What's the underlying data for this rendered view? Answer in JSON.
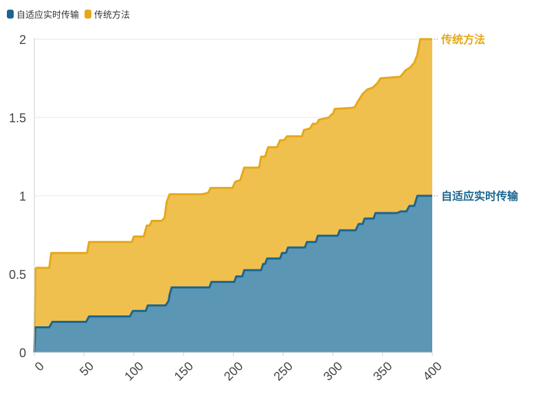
{
  "chart_data": {
    "type": "area",
    "stacked": true,
    "xlim": [
      0,
      400
    ],
    "ylim": [
      0,
      2
    ],
    "x_ticks": [
      0,
      50,
      100,
      150,
      200,
      250,
      300,
      350,
      400
    ],
    "y_ticks": [
      0,
      0.5,
      1,
      1.5,
      2
    ],
    "x_tick_labels": [
      "0",
      "50",
      "100",
      "150",
      "200",
      "250",
      "300",
      "350",
      "400"
    ],
    "y_tick_labels": [
      "0",
      "0.5",
      "1",
      "1.5",
      "2"
    ],
    "grid": "horizontal",
    "legend_position": "top-left",
    "series": [
      {
        "name": "自适应实时传输",
        "color": "#1b6690",
        "fill": "#5c96b5",
        "points": [
          [
            0,
            0
          ],
          [
            1,
            0.16
          ],
          [
            15,
            0.16
          ],
          [
            18,
            0.195
          ],
          [
            52,
            0.195
          ],
          [
            55,
            0.23
          ],
          [
            96,
            0.23
          ],
          [
            99,
            0.265
          ],
          [
            112,
            0.265
          ],
          [
            114,
            0.3
          ],
          [
            132,
            0.3
          ],
          [
            135,
            0.33
          ],
          [
            136,
            0.37
          ],
          [
            138,
            0.415
          ],
          [
            176,
            0.415
          ],
          [
            178,
            0.45
          ],
          [
            201,
            0.45
          ],
          [
            203,
            0.485
          ],
          [
            209,
            0.485
          ],
          [
            211,
            0.525
          ],
          [
            228,
            0.525
          ],
          [
            230,
            0.565
          ],
          [
            232,
            0.565
          ],
          [
            234,
            0.6
          ],
          [
            247,
            0.6
          ],
          [
            249,
            0.635
          ],
          [
            253,
            0.635
          ],
          [
            255,
            0.67
          ],
          [
            272,
            0.67
          ],
          [
            274,
            0.705
          ],
          [
            283,
            0.705
          ],
          [
            285,
            0.745
          ],
          [
            305,
            0.745
          ],
          [
            307,
            0.78
          ],
          [
            323,
            0.78
          ],
          [
            326,
            0.82
          ],
          [
            330,
            0.82
          ],
          [
            332,
            0.855
          ],
          [
            341,
            0.855
          ],
          [
            343,
            0.89
          ],
          [
            365,
            0.89
          ],
          [
            368,
            0.9
          ],
          [
            374,
            0.9
          ],
          [
            377,
            0.935
          ],
          [
            382,
            0.935
          ],
          [
            385,
            1.0
          ],
          [
            400,
            1.0
          ]
        ]
      },
      {
        "name": "传统方法",
        "color": "#e5a819",
        "fill": "#f0c04f",
        "points": [
          [
            0,
            0
          ],
          [
            1,
            0.53
          ],
          [
            2,
            0.54
          ],
          [
            15,
            0.54
          ],
          [
            17,
            0.635
          ],
          [
            53,
            0.635
          ],
          [
            55,
            0.705
          ],
          [
            98,
            0.705
          ],
          [
            100,
            0.74
          ],
          [
            110,
            0.74
          ],
          [
            113,
            0.81
          ],
          [
            116,
            0.81
          ],
          [
            118,
            0.84
          ],
          [
            128,
            0.84
          ],
          [
            131,
            0.86
          ],
          [
            133,
            0.96
          ],
          [
            136,
            1.01
          ],
          [
            169,
            1.01
          ],
          [
            175,
            1.02
          ],
          [
            177,
            1.05
          ],
          [
            199,
            1.05
          ],
          [
            202,
            1.09
          ],
          [
            207,
            1.1
          ],
          [
            211,
            1.18
          ],
          [
            226,
            1.18
          ],
          [
            228,
            1.25
          ],
          [
            232,
            1.25
          ],
          [
            235,
            1.31
          ],
          [
            244,
            1.31
          ],
          [
            247,
            1.355
          ],
          [
            251,
            1.355
          ],
          [
            254,
            1.38
          ],
          [
            269,
            1.38
          ],
          [
            271,
            1.42
          ],
          [
            277,
            1.43
          ],
          [
            280,
            1.46
          ],
          [
            284,
            1.46
          ],
          [
            286,
            1.485
          ],
          [
            296,
            1.5
          ],
          [
            299,
            1.52
          ],
          [
            300,
            1.52
          ],
          [
            302,
            1.555
          ],
          [
            317,
            1.56
          ],
          [
            322,
            1.565
          ],
          [
            325,
            1.6
          ],
          [
            330,
            1.65
          ],
          [
            335,
            1.68
          ],
          [
            340,
            1.69
          ],
          [
            345,
            1.72
          ],
          [
            348,
            1.75
          ],
          [
            368,
            1.76
          ],
          [
            373,
            1.8
          ],
          [
            378,
            1.82
          ],
          [
            382,
            1.85
          ],
          [
            385,
            1.9
          ],
          [
            388,
            2.0
          ],
          [
            400,
            2.0
          ]
        ]
      }
    ]
  }
}
